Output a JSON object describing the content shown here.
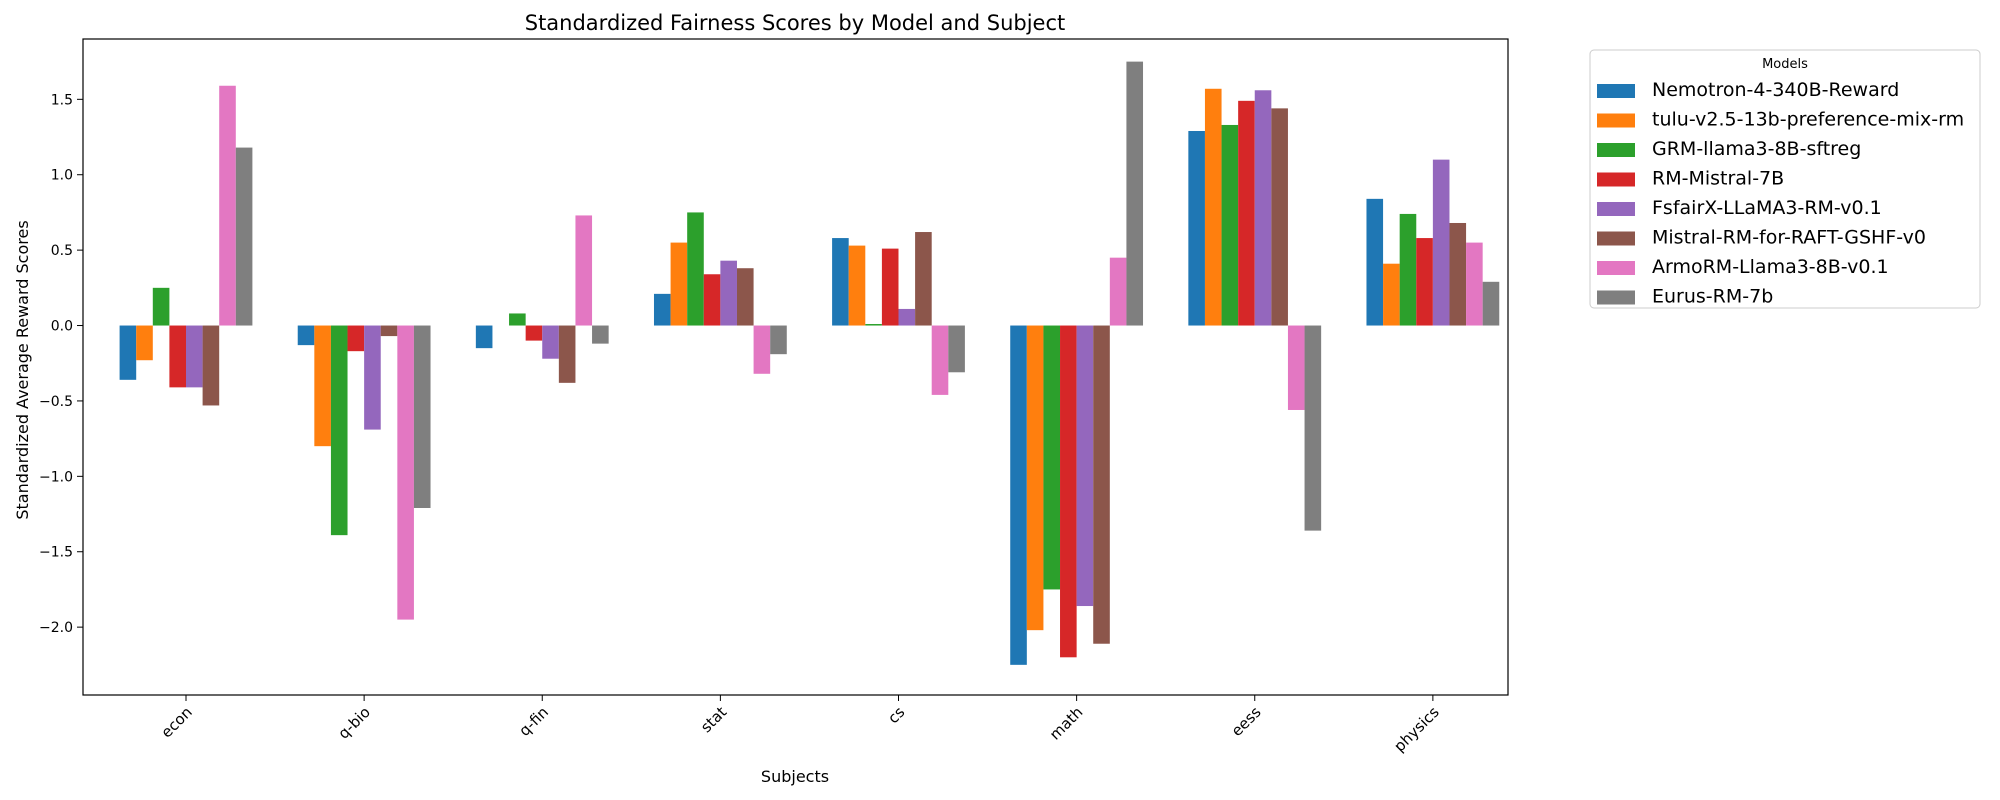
{
  "chart_data": {
    "type": "bar",
    "title": "Standardized Fairness Scores by Model and Subject",
    "xlabel": "Subjects",
    "ylabel": "Standardized Average Reward Scores",
    "categories": [
      "econ",
      "q-bio",
      "q-fin",
      "stat",
      "cs",
      "math",
      "eess",
      "physics"
    ],
    "ylim": [
      -2.45,
      1.9
    ],
    "yticks": [
      -2.0,
      -1.5,
      -1.0,
      -0.5,
      0.0,
      0.5,
      1.0,
      1.5
    ],
    "ytick_labels": [
      "−2.0",
      "−1.5",
      "−1.0",
      "−0.5",
      "0.0",
      "0.5",
      "1.0",
      "1.5"
    ],
    "grid": false,
    "legend": {
      "title": "Models",
      "placement": "outside-right"
    },
    "series": [
      {
        "name": "Nemotron-4-340B-Reward",
        "color": "#1f77b4",
        "values": [
          -0.36,
          -0.13,
          -0.15,
          0.21,
          0.58,
          -2.25,
          1.29,
          0.84
        ]
      },
      {
        "name": "tulu-v2.5-13b-preference-mix-rm",
        "color": "#ff7f0e",
        "values": [
          -0.23,
          -0.8,
          0.0,
          0.55,
          0.53,
          -2.02,
          1.57,
          0.41
        ]
      },
      {
        "name": "GRM-llama3-8B-sftreg",
        "color": "#2ca02c",
        "values": [
          0.25,
          -1.39,
          0.08,
          0.75,
          0.01,
          -1.75,
          1.33,
          0.74
        ]
      },
      {
        "name": "RM-Mistral-7B",
        "color": "#d62728",
        "values": [
          -0.41,
          -0.17,
          -0.1,
          0.34,
          0.51,
          -2.2,
          1.49,
          0.58
        ]
      },
      {
        "name": "FsfairX-LLaMA3-RM-v0.1",
        "color": "#9467bd",
        "values": [
          -0.41,
          -0.69,
          -0.22,
          0.43,
          0.11,
          -1.86,
          1.56,
          1.1
        ]
      },
      {
        "name": "Mistral-RM-for-RAFT-GSHF-v0",
        "color": "#8c564b",
        "values": [
          -0.53,
          -0.07,
          -0.38,
          0.38,
          0.62,
          -2.11,
          1.44,
          0.68
        ]
      },
      {
        "name": "ArmoRM-Llama3-8B-v0.1",
        "color": "#e377c2",
        "values": [
          1.59,
          -1.95,
          0.73,
          -0.32,
          -0.46,
          0.45,
          -0.56,
          0.55
        ]
      },
      {
        "name": "Eurus-RM-7b",
        "color": "#7f7f7f",
        "values": [
          1.18,
          -1.21,
          -0.12,
          -0.19,
          -0.31,
          1.75,
          -1.36,
          0.29
        ]
      }
    ]
  }
}
